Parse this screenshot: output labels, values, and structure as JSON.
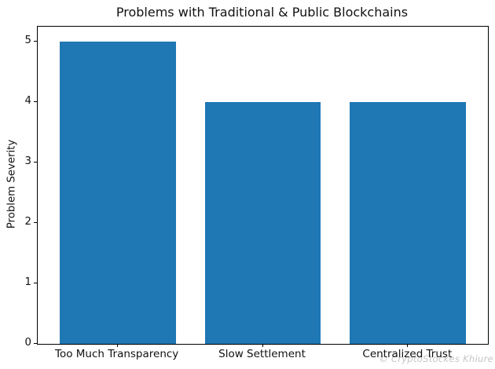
{
  "watermark": "© CryptoStockes Khiure",
  "chart_data": {
    "type": "bar",
    "title": "Problems with Traditional & Public Blockchains",
    "categories": [
      "Too Much Transparency",
      "Slow Settlement",
      "Centralized Trust"
    ],
    "values": [
      5,
      4,
      4
    ],
    "xlabel": "",
    "ylabel": "Problem Severity",
    "ylim": [
      0,
      5.25
    ],
    "yticks": [
      "0",
      "1",
      "2",
      "3",
      "4",
      "5"
    ],
    "bar_width_fraction": 0.8,
    "bar_color": "#1f77b4",
    "background_color": "#ffffff",
    "grid": false,
    "legend_position": "none"
  }
}
